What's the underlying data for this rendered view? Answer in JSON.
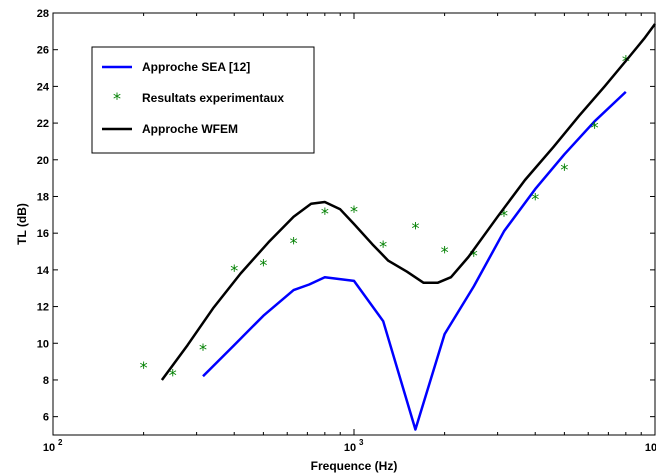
{
  "chart_data": {
    "type": "line",
    "title": "",
    "xlabel": "Frequence (Hz)",
    "ylabel": "TL (dB)",
    "xscale": "log",
    "xlim": [
      100,
      10000
    ],
    "ylim": [
      5,
      28
    ],
    "x_ticks": [
      {
        "base": "10",
        "exp": "2",
        "value": 100
      },
      {
        "base": "10",
        "exp": "3",
        "value": 1000
      },
      {
        "base": "10",
        "exp": "4",
        "value": 10000
      }
    ],
    "y_ticks": [
      "6",
      "8",
      "10",
      "12",
      "14",
      "16",
      "18",
      "20",
      "22",
      "24",
      "26",
      "28"
    ],
    "grid": false,
    "legend_position": "top-left",
    "series": [
      {
        "name": "Approche SEA [12]",
        "kind": "line",
        "color": "#0000ff",
        "x": [
          315,
          400,
          500,
          630,
          710,
          800,
          1000,
          1250,
          1600,
          2000,
          2500,
          3150,
          4000,
          5000,
          6300,
          8000
        ],
        "y": [
          8.2,
          9.9,
          11.5,
          12.9,
          13.2,
          13.6,
          13.4,
          11.2,
          5.3,
          10.5,
          13.1,
          16.1,
          18.4,
          20.3,
          22.1,
          23.7
        ]
      },
      {
        "name": "Resultats experimentaux",
        "kind": "scatter",
        "color": "#008000",
        "x": [
          200,
          250,
          315,
          400,
          500,
          630,
          800,
          1000,
          1250,
          1600,
          2000,
          2500,
          3150,
          4000,
          5000,
          6300,
          8000
        ],
        "y": [
          8.7,
          8.3,
          9.7,
          14.0,
          14.3,
          15.5,
          17.1,
          17.2,
          15.3,
          16.3,
          15.0,
          14.8,
          17.0,
          17.9,
          19.5,
          21.8,
          25.4
        ]
      },
      {
        "name": "Approche WFEM",
        "kind": "line",
        "color": "#000000",
        "x": [
          230,
          280,
          340,
          420,
          520,
          630,
          720,
          800,
          900,
          1000,
          1150,
          1300,
          1500,
          1700,
          1900,
          2100,
          2400,
          3000,
          3700,
          4600,
          5600,
          6800,
          8200,
          9200,
          10000
        ],
        "y": [
          8.0,
          9.9,
          11.9,
          13.8,
          15.5,
          16.9,
          17.6,
          17.7,
          17.3,
          16.5,
          15.4,
          14.5,
          13.9,
          13.3,
          13.3,
          13.6,
          14.7,
          16.9,
          18.9,
          20.7,
          22.4,
          24.0,
          25.6,
          26.6,
          27.4
        ]
      }
    ]
  }
}
